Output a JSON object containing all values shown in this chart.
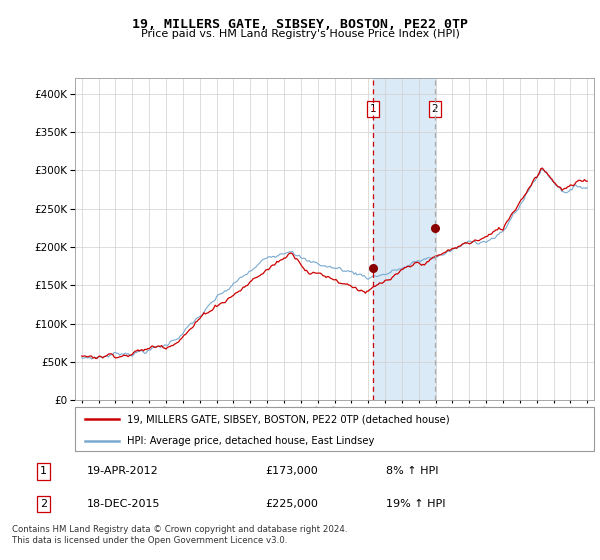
{
  "title": "19, MILLERS GATE, SIBSEY, BOSTON, PE22 0TP",
  "subtitle": "Price paid vs. HM Land Registry's House Price Index (HPI)",
  "legend_line1": "19, MILLERS GATE, SIBSEY, BOSTON, PE22 0TP (detached house)",
  "legend_line2": "HPI: Average price, detached house, East Lindsey",
  "transaction1_label": "1",
  "transaction1_date": "19-APR-2012",
  "transaction1_price": "£173,000",
  "transaction1_hpi": "8% ↑ HPI",
  "transaction2_label": "2",
  "transaction2_date": "18-DEC-2015",
  "transaction2_price": "£225,000",
  "transaction2_hpi": "19% ↑ HPI",
  "footer": "Contains HM Land Registry data © Crown copyright and database right 2024.\nThis data is licensed under the Open Government Licence v3.0.",
  "price_color": "#cc0000",
  "hpi_color": "#7aaad0",
  "highlight_color": "#daeaf7",
  "marker1_x": 2012.29,
  "marker2_x": 2015.96,
  "marker1_y": 173000,
  "marker2_y": 225000,
  "xmin": 1994.6,
  "xmax": 2025.4,
  "ymin": 0,
  "ymax": 420000,
  "yticks": [
    0,
    50000,
    100000,
    150000,
    200000,
    250000,
    300000,
    350000,
    400000
  ]
}
